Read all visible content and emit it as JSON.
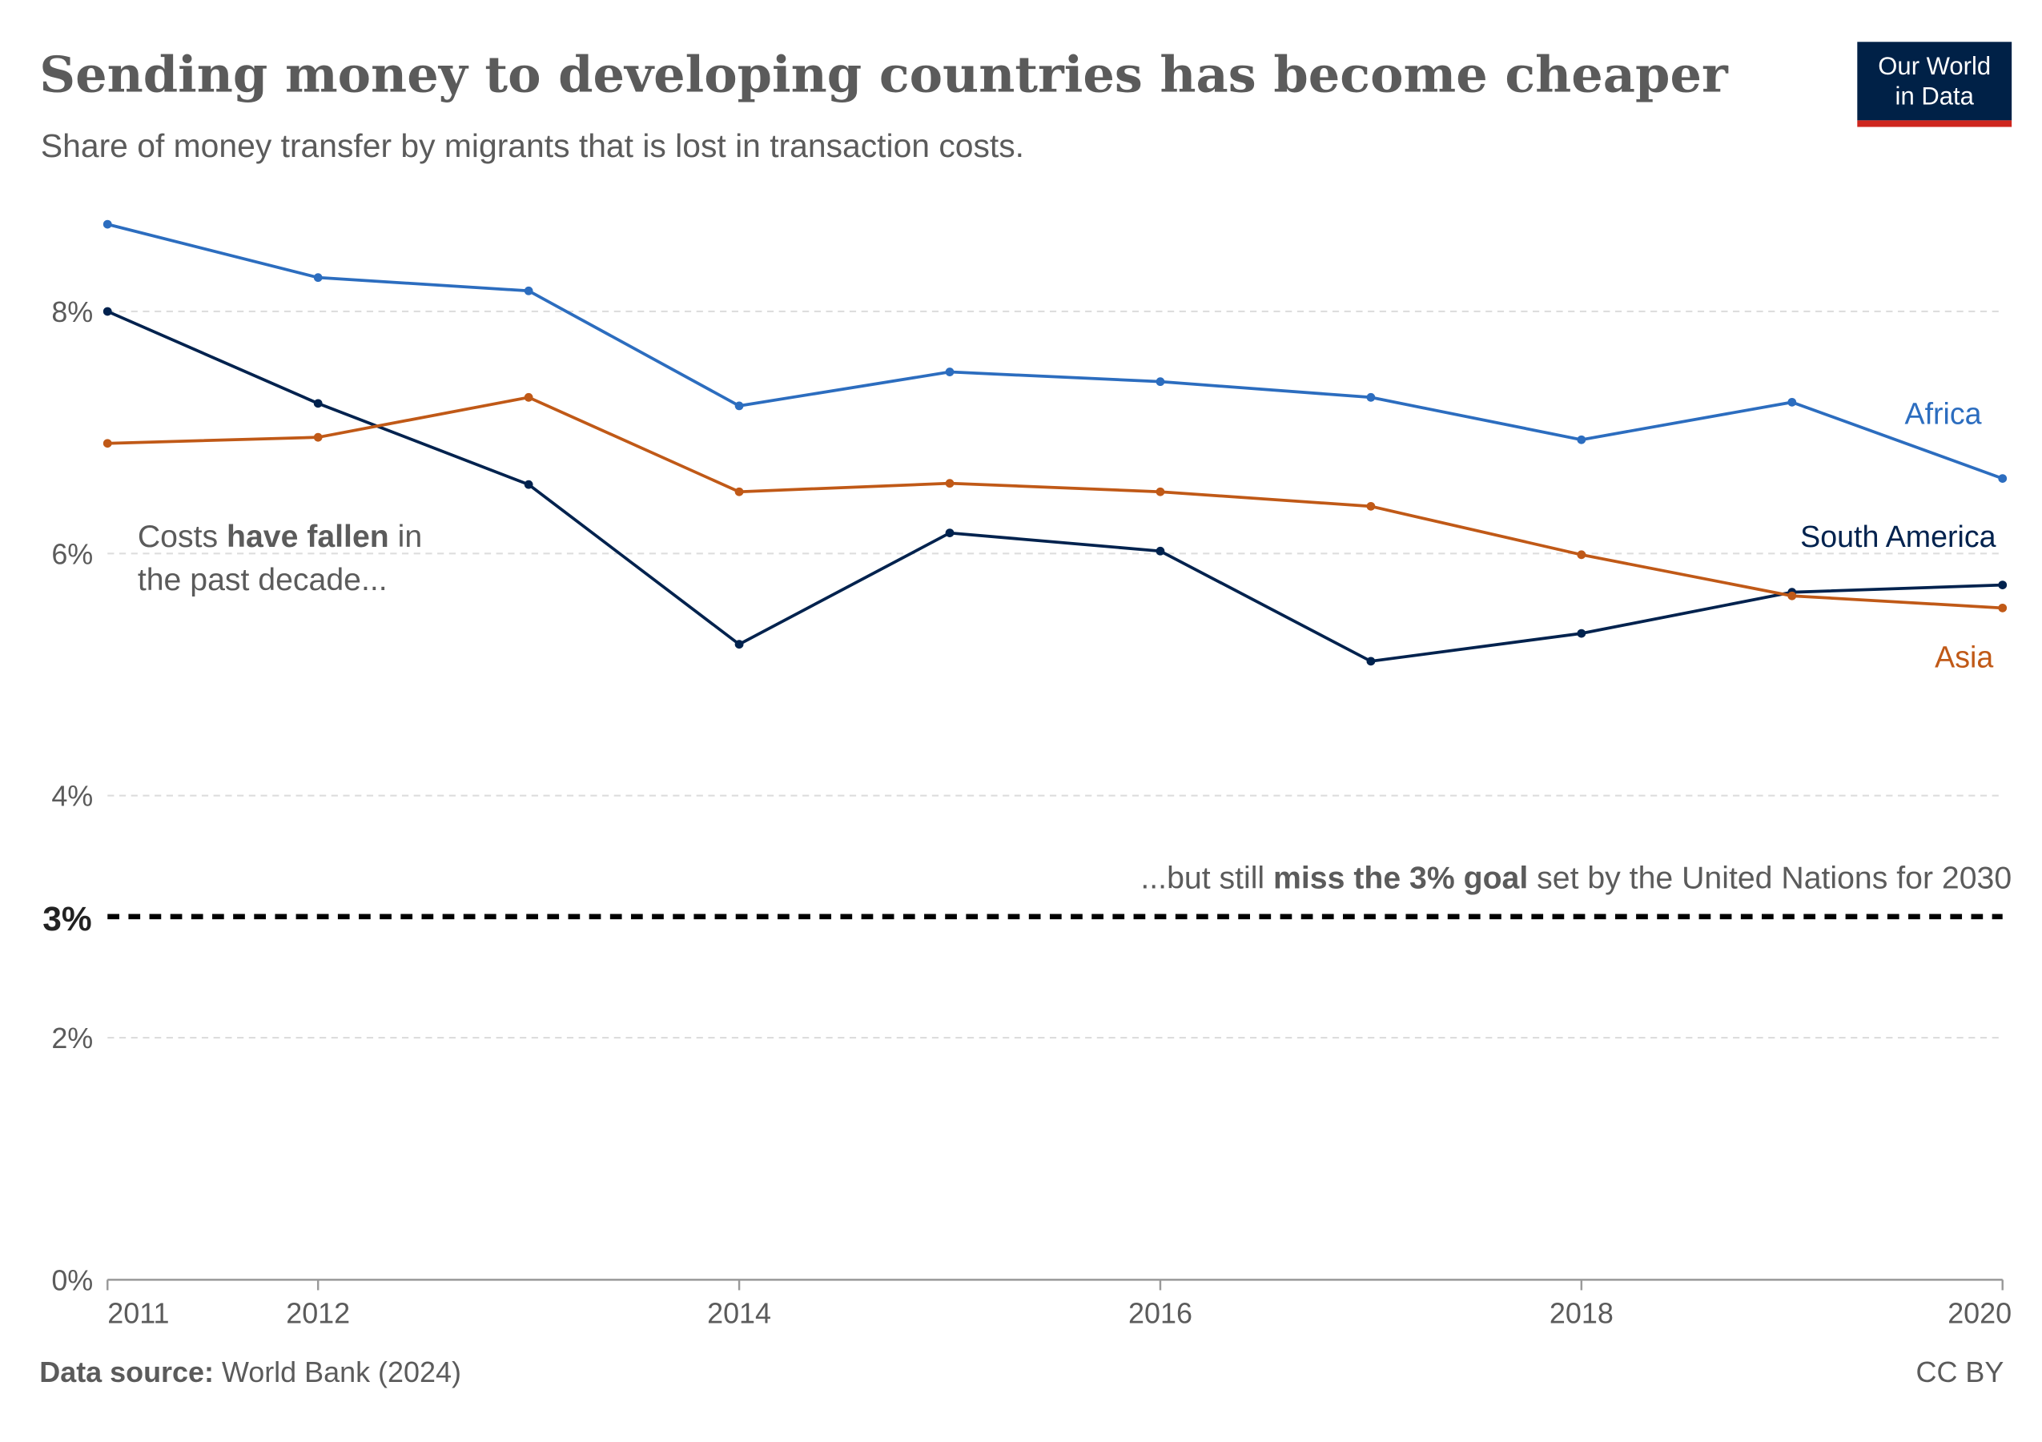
{
  "header": {
    "title": "Sending money to developing countries has become cheaper",
    "subtitle": "Share of money transfer by migrants that is lost in transaction costs."
  },
  "logo": {
    "line1": "Our World",
    "line2": "in Data",
    "bg": "#002147",
    "accent": "#ce261e"
  },
  "annotations": {
    "fallen": {
      "pre": "Costs ",
      "bold": "have fallen",
      "post": " in",
      "line2": "the past decade..."
    },
    "goal": {
      "pre": "...but still ",
      "bold": "miss the 3% goal",
      "post": " set by the United Nations for 2030"
    },
    "goal_label": "3%"
  },
  "footer": {
    "source_label": "Data source:",
    "source": " World Bank (2024)",
    "license": "CC BY"
  },
  "chart_data": {
    "type": "line",
    "title": "Sending money to developing countries has become cheaper",
    "subtitle": "Share of money transfer by migrants that is lost in transaction costs.",
    "x": [
      2011,
      2012,
      2013,
      2014,
      2015,
      2016,
      2017,
      2018,
      2019,
      2020
    ],
    "x_ticks": [
      "2011",
      "2012",
      "2014",
      "2016",
      "2018",
      "2020"
    ],
    "y_ticks": [
      "0%",
      "2%",
      "4%",
      "6%",
      "8%"
    ],
    "ylim": [
      0,
      8.8
    ],
    "grid": "horizontal dashed",
    "reference_line": {
      "value": 3,
      "label": "3%",
      "style": "dashed",
      "color": "#000000"
    },
    "series": [
      {
        "name": "Africa",
        "color": "#2c6dbf",
        "values": [
          8.72,
          8.28,
          8.17,
          7.22,
          7.5,
          7.42,
          7.29,
          6.94,
          7.25,
          6.62
        ]
      },
      {
        "name": "South America",
        "color": "#00224e",
        "values": [
          8.0,
          7.24,
          6.57,
          5.25,
          6.17,
          6.02,
          5.11,
          5.34,
          5.68,
          5.74
        ]
      },
      {
        "name": "Asia",
        "color": "#c05917",
        "values": [
          6.91,
          6.96,
          7.29,
          6.51,
          6.58,
          6.51,
          6.39,
          5.99,
          5.65,
          5.55
        ]
      }
    ]
  }
}
